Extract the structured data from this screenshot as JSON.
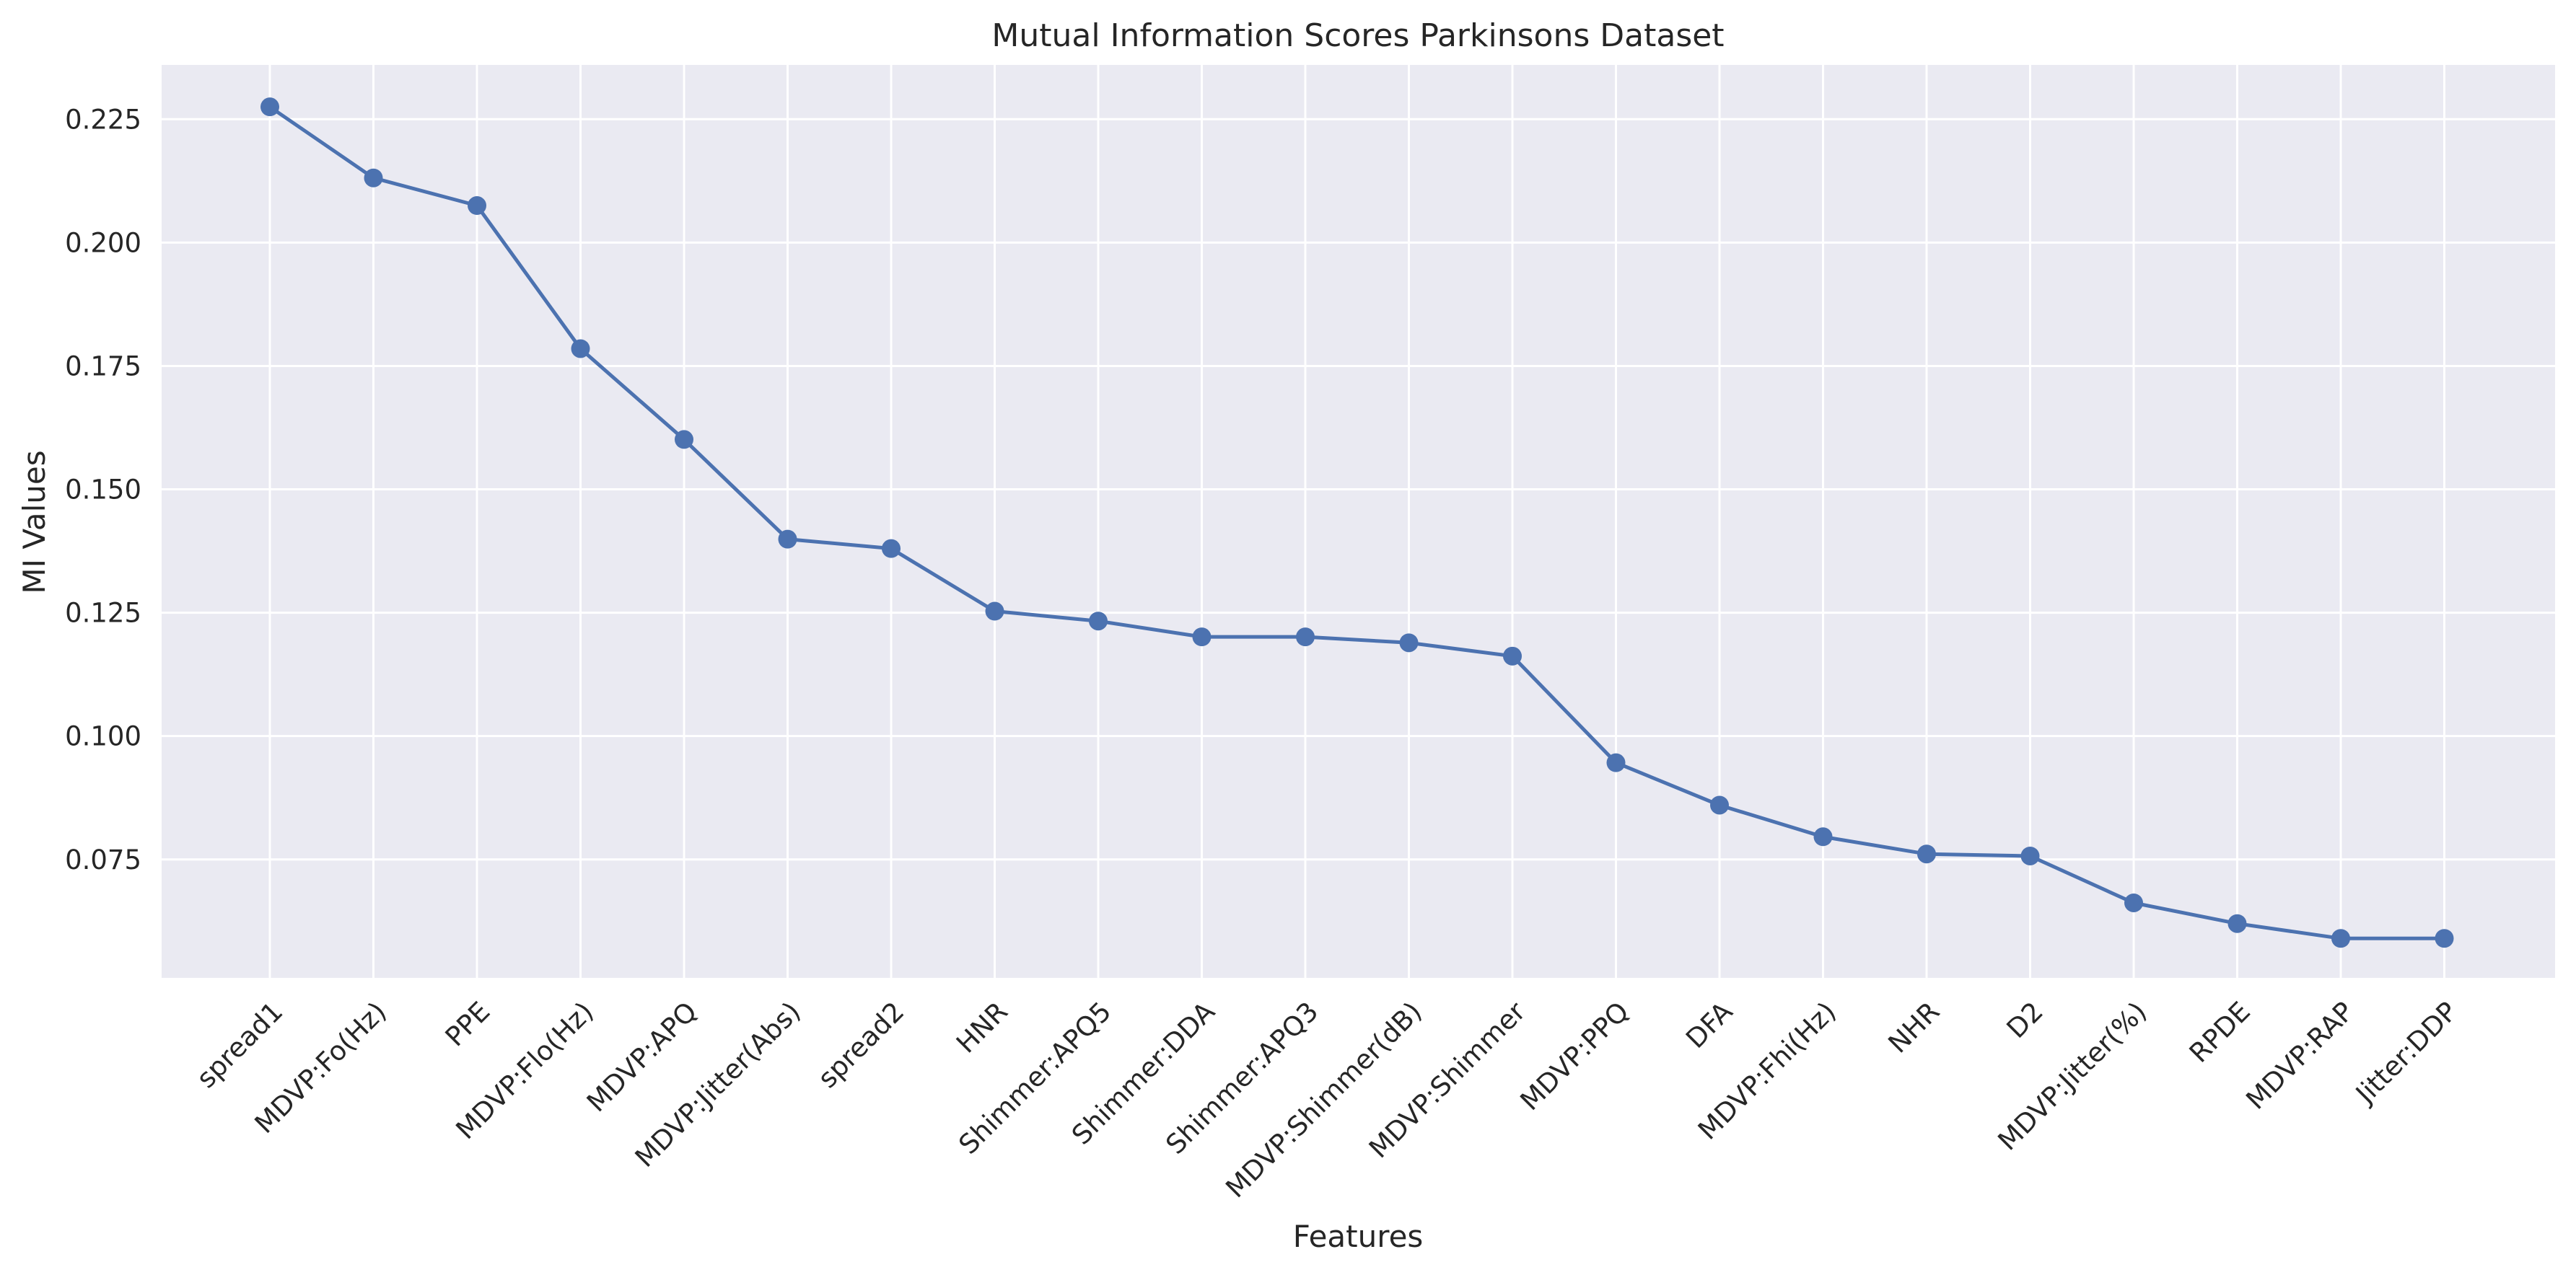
{
  "chart_data": {
    "type": "line",
    "title": "Mutual Information Scores Parkinsons Dataset",
    "xlabel": "Features",
    "ylabel": "MI Values",
    "ylim": [
      0.051,
      0.236
    ],
    "yticks": [
      "0.075",
      "0.100",
      "0.125",
      "0.150",
      "0.175",
      "0.200",
      "0.225"
    ],
    "grid": true,
    "legend": "none",
    "colors": {
      "series": "#4c72b0",
      "background": "#eaeaf2",
      "grid": "#ffffff"
    },
    "categories": [
      "spread1",
      "MDVP:Fo(Hz)",
      "PPE",
      "MDVP:Flo(Hz)",
      "MDVP:APQ",
      "MDVP:Jitter(Abs)",
      "spread2",
      "HNR",
      "Shimmer:APQ5",
      "Shimmer:DDA",
      "Shimmer:APQ3",
      "MDVP:Shimmer(dB)",
      "MDVP:Shimmer",
      "MDVP:PPQ",
      "DFA",
      "MDVP:Fhi(Hz)",
      "NHR",
      "D2",
      "MDVP:Jitter(%)",
      "RPDE",
      "MDVP:RAP",
      "Jitter:DDP"
    ],
    "values": [
      0.2275,
      0.2131,
      0.2075,
      0.1785,
      0.1601,
      0.1399,
      0.138,
      0.1253,
      0.1233,
      0.1201,
      0.1201,
      0.1189,
      0.1162,
      0.0946,
      0.086,
      0.0796,
      0.0761,
      0.0757,
      0.0662,
      0.062,
      0.059,
      0.059
    ]
  }
}
